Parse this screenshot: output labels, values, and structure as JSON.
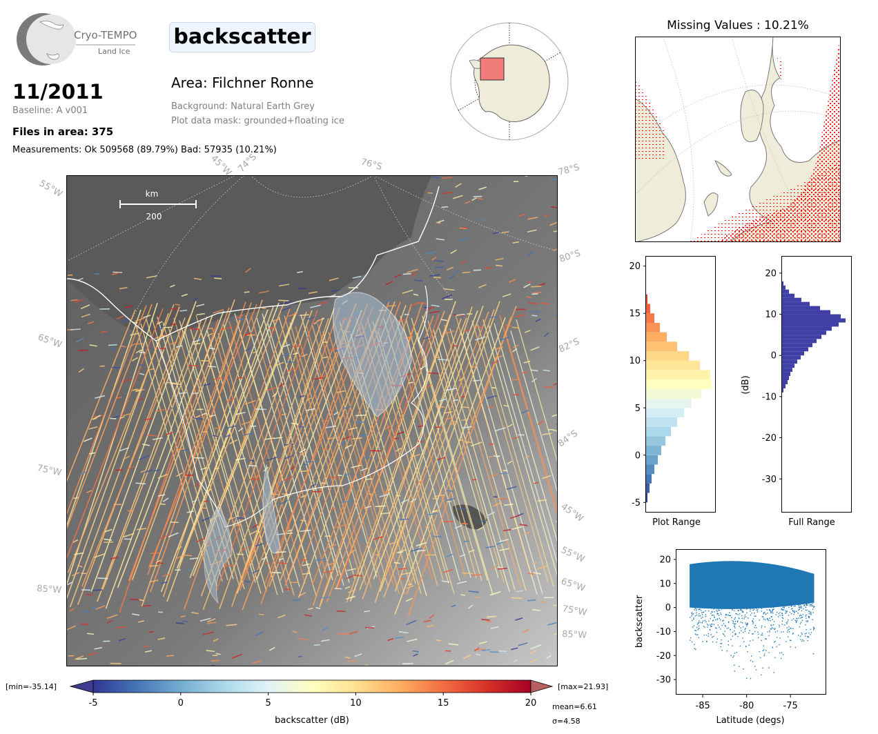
{
  "header": {
    "logo": {
      "name": "Cryo-TEMPO",
      "sub": "Land Ice"
    },
    "parameter": "backscatter",
    "date": "11/2011",
    "baseline": "Baseline: A v001",
    "files": "Files in area: 375",
    "measurements": "Measurements: Ok 509568 (89.79%) Bad: 57935 (10.21%)",
    "area": "Area: Filchner Ronne",
    "background": "Background: Natural Earth Grey",
    "mask": "Plot data mask: grounded+floating ice"
  },
  "map": {
    "scale_unit": "km",
    "scale_value": "200",
    "labels": {
      "top": [
        "55°W",
        "45°W",
        "74°S",
        "76°S",
        "78°S"
      ],
      "left": [
        "65°W",
        "75°W",
        "85°W"
      ],
      "right": [
        "80°S",
        "82°S",
        "84°S",
        "45°W",
        "55°W",
        "65°W",
        "75°W",
        "85°W"
      ]
    }
  },
  "missing": {
    "title": "Missing Values : 10.21%"
  },
  "colorbar": {
    "min_label": "[min=-35.14]",
    "max_label": "[max=21.93]",
    "ticks": [
      "-5",
      "0",
      "5",
      "10",
      "15",
      "20"
    ],
    "label": "backscatter (dB)",
    "mean": "mean=6.61",
    "sigma": "σ=4.58",
    "colors": [
      "#313695",
      "#4575b4",
      "#74add1",
      "#abd9e9",
      "#e0f3f8",
      "#ffffbf",
      "#fee090",
      "#fdae61",
      "#f46d43",
      "#d73027",
      "#a50026"
    ]
  },
  "chart_data": [
    {
      "type": "bar",
      "orientation": "horizontal",
      "title": "",
      "xlabel": "Plot Range",
      "ylabel": "",
      "ylim": [
        -6,
        21
      ],
      "yticks": [
        "-5",
        "0",
        "5",
        "10",
        "15",
        "20"
      ],
      "bins": [
        -5,
        -4,
        -3,
        -2,
        -1,
        0,
        1,
        2,
        3,
        4,
        5,
        6,
        7,
        8,
        9,
        10,
        11,
        12,
        13,
        14,
        15,
        16
      ],
      "values": [
        0.02,
        0.05,
        0.08,
        0.12,
        0.17,
        0.22,
        0.28,
        0.36,
        0.45,
        0.55,
        0.66,
        0.8,
        0.95,
        0.93,
        0.78,
        0.62,
        0.45,
        0.3,
        0.2,
        0.12,
        0.06,
        0.02
      ]
    },
    {
      "type": "bar",
      "orientation": "horizontal",
      "title": "",
      "xlabel": "Full Range",
      "ylabel": "(dB)",
      "ylim": [
        -38,
        24
      ],
      "yticks": [
        "20",
        "10",
        "0",
        "-10",
        "-20",
        "-30"
      ],
      "bins": [
        -9,
        -8,
        -7,
        -6,
        -5,
        -4,
        -3,
        -2,
        -1,
        0,
        1,
        2,
        3,
        4,
        5,
        6,
        7,
        8,
        9,
        10,
        11,
        12,
        13,
        14,
        15,
        16,
        17
      ],
      "values": [
        0.02,
        0.05,
        0.08,
        0.1,
        0.12,
        0.15,
        0.18,
        0.22,
        0.27,
        0.32,
        0.38,
        0.44,
        0.5,
        0.57,
        0.64,
        0.72,
        0.82,
        0.92,
        0.85,
        0.7,
        0.55,
        0.4,
        0.28,
        0.18,
        0.1,
        0.05,
        0.02
      ],
      "color": "#3f3fa6"
    },
    {
      "type": "scatter",
      "title": "",
      "xlabel": "Latitude (degs)",
      "ylabel": "backscatter",
      "xlim": [
        -88,
        -71
      ],
      "ylim": [
        -36,
        24
      ],
      "xticks": [
        "-85",
        "-80",
        "-75"
      ],
      "yticks": [
        "20",
        "10",
        "0",
        "-10",
        "-20",
        "-30"
      ],
      "x_range": [
        -86.5,
        -72.3
      ],
      "color": "#1f77b4"
    }
  ]
}
